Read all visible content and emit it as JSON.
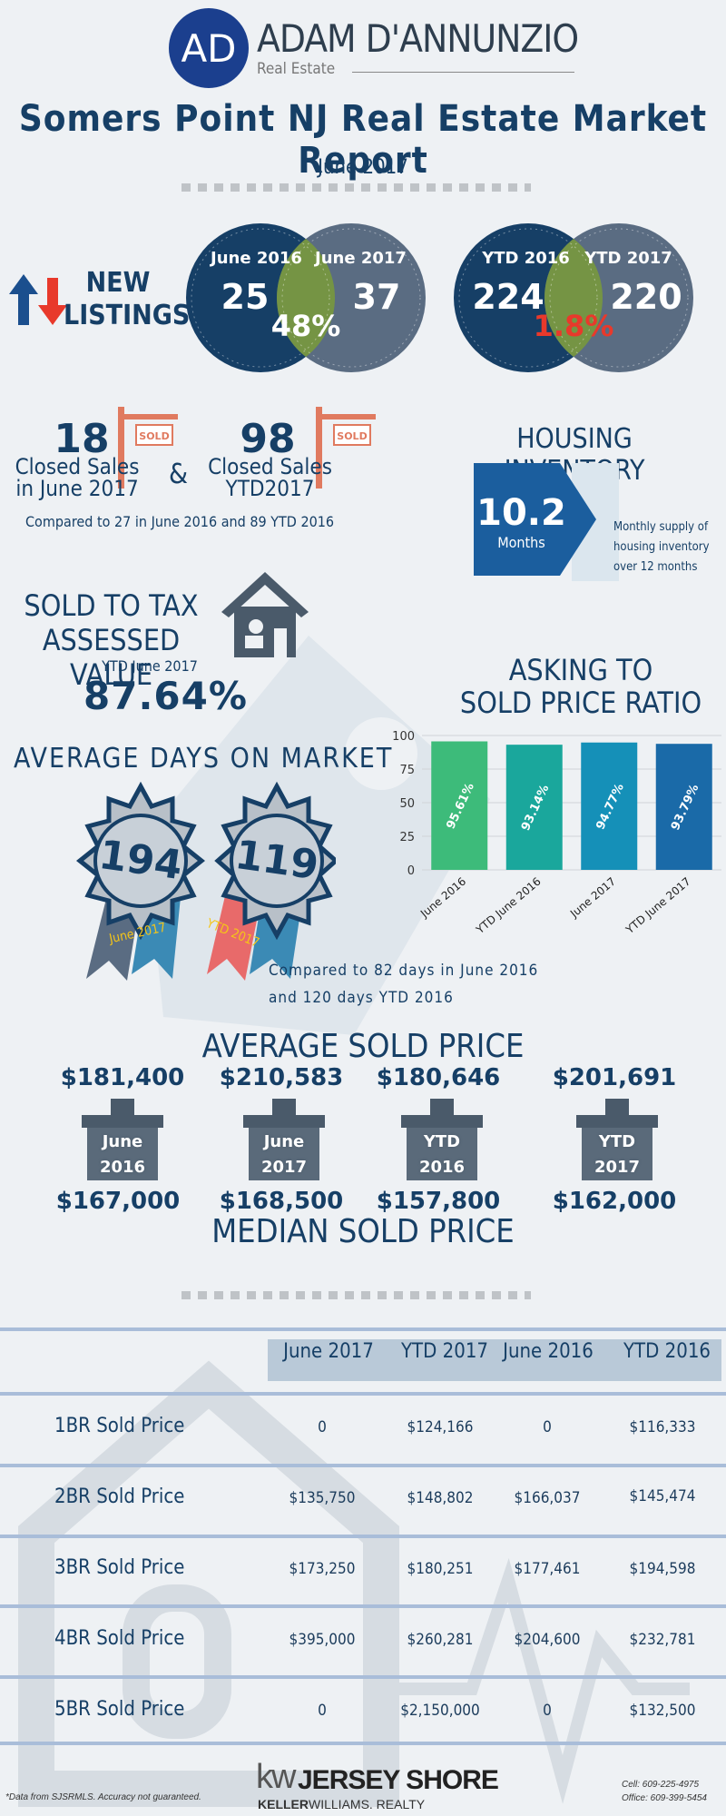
{
  "brand": {
    "monogram": "AD",
    "name": "ADAM D'ANNUNZIO",
    "tagline": "Real Estate"
  },
  "report": {
    "title": "Somers Point NJ Real Estate Market Report",
    "period": "June 2017"
  },
  "new_listings": {
    "label_line1": "NEW",
    "label_line2": "LISTINGS",
    "monthly": {
      "left_label": "June 2016",
      "left_value": "25",
      "right_label": "June 2017",
      "right_value": "37",
      "change": "48%",
      "change_color": "#ffffff"
    },
    "ytd": {
      "left_label": "YTD 2016",
      "left_value": "224",
      "right_label": "YTD 2017",
      "right_value": "220",
      "change": "1.8%",
      "change_color": "#e8392b"
    }
  },
  "closed_sales": {
    "monthly_value": "18",
    "monthly_label_line1": "Closed Sales",
    "monthly_label_line2": "in June 2017",
    "ampersand": "&",
    "ytd_value": "98",
    "ytd_label_line1": "Closed Sales",
    "ytd_label_line2": "YTD2017",
    "sign_text": "SOLD",
    "comparison": "Compared to 27 in June 2016 and 89 YTD 2016"
  },
  "housing_inventory": {
    "title": "HOUSING INVENTORY",
    "value": "10.2",
    "unit": "Months",
    "desc_line1": "Monthly supply of",
    "desc_line2": "housing inventory",
    "desc_line3": "over 12 months"
  },
  "sold_to_tax": {
    "title_line1": "SOLD TO TAX",
    "title_line2": "ASSESSED VALUE",
    "subtitle": "YTD June 2017",
    "value": "87.64%"
  },
  "asking_ratio": {
    "title_line1": "ASKING TO",
    "title_line2": "SOLD PRICE RATIO"
  },
  "chart_data": {
    "type": "bar",
    "title": "ASKING TO SOLD PRICE RATIO",
    "categories": [
      "June 2016",
      "YTD June 2016",
      "June 2017",
      "YTD June 2017"
    ],
    "values": [
      95.61,
      93.14,
      94.77,
      93.79
    ],
    "value_labels": [
      "95.61%",
      "93.14%",
      "94.77%",
      "93.79%"
    ],
    "colors": [
      "#3dbb7a",
      "#1aa79c",
      "#1590b8",
      "#1a6aa8"
    ],
    "yticks": [
      "0",
      "25",
      "50",
      "75",
      "100"
    ],
    "ylim": [
      0,
      100
    ],
    "grid": true
  },
  "days_on_market": {
    "title": "AVERAGE DAYS ON MARKET",
    "monthly_value": "194",
    "monthly_ribbon": "June 2017",
    "ytd_value": "119",
    "ytd_ribbon": "YTD 2017",
    "comparison_line1": "Compared to 82 days in June 2016",
    "comparison_line2": "and 120 days YTD 2016"
  },
  "prices": {
    "avg_title": "AVERAGE SOLD PRICE",
    "median_title": "MEDIAN SOLD PRICE",
    "items": [
      {
        "label_line1": "June",
        "label_line2": "2016",
        "average": "$181,400",
        "median": "$167,000"
      },
      {
        "label_line1": "June",
        "label_line2": "2017",
        "average": "$210,583",
        "median": "$168,500"
      },
      {
        "label_line1": "YTD",
        "label_line2": "2016",
        "average": "$180,646",
        "median": "$157,800"
      },
      {
        "label_line1": "YTD",
        "label_line2": "2017",
        "average": "$201,691",
        "median": "$162,000"
      }
    ]
  },
  "table": {
    "headers": [
      "June 2017",
      "YTD 2017",
      "June 2016",
      "YTD 2016"
    ],
    "rows": [
      {
        "label": "1BR Sold Price",
        "values": [
          "0",
          "$124,166",
          "0",
          "$116,333"
        ]
      },
      {
        "label": "2BR Sold Price",
        "values": [
          "$135,750",
          "$148,802",
          "$166,037",
          "$145,474"
        ]
      },
      {
        "label": "3BR Sold Price",
        "values": [
          "$173,250",
          "$180,251",
          "$177,461",
          "$194,598"
        ]
      },
      {
        "label": "4BR Sold Price",
        "values": [
          "$395,000",
          "$260,281",
          "$204,600",
          "$232,781"
        ]
      },
      {
        "label": "5BR Sold Price",
        "values": [
          "0",
          "$2,150,000",
          "0",
          "$132,500"
        ]
      }
    ]
  },
  "footer": {
    "disclaimer": "*Data from SJSRMLS.  Accuracy not guaranteed.",
    "kw": "kw",
    "office_name": "JERSEY SHORE",
    "brokerage_a": "KELLER",
    "brokerage_b": "WILLIAMS. REALTY",
    "cell": "Cell: 609-225-4975",
    "office": "Office: 609-399-5454"
  }
}
